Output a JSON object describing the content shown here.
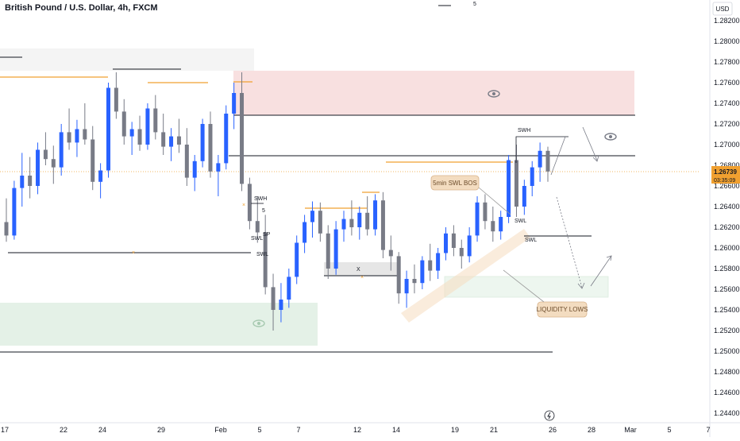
{
  "chart_data": {
    "type": "candlestick",
    "title": "British Pound / U.S. Dollar, 4h, FXCM",
    "top_marker": "5",
    "currency": "USD",
    "yticks": [
      "1.28200",
      "1.28000",
      "1.27800",
      "1.27600",
      "1.27400",
      "1.27200",
      "1.27000",
      "1.26800",
      "1.26600",
      "1.26400",
      "1.26200",
      "1.26000",
      "1.25800",
      "1.25600",
      "1.25400",
      "1.25200",
      "1.25000",
      "1.24800",
      "1.24600",
      "1.24400"
    ],
    "ylim": [
      1.2432,
      1.2832
    ],
    "xticks": [
      "17",
      "22",
      "24",
      "29",
      "Feb",
      "5",
      "7",
      "12",
      "14",
      "19",
      "21",
      "26",
      "28",
      "Mar",
      "5",
      "7"
    ],
    "last_price": "1.26739",
    "countdown": "03:35:09",
    "colors": {
      "up": "#2962ff",
      "down": "#787b86",
      "supply_zone": "#f2c6c6",
      "demand_zone": "#cde6d3",
      "price_line": "#f0a030"
    },
    "annotations": {
      "swh_top": "SWH",
      "swh_mid": "SWH",
      "swl_mid": "SWL",
      "swl_right": "SWL",
      "swl_right_small": "SWL",
      "x_mark": "X",
      "bos_callout": "5min SWL BOS",
      "liquidity_callout": "LIQUIDITY LOWS",
      "mid_five": "5",
      "mid_sp": "SP"
    },
    "levels": [
      1.2778,
      1.2747,
      1.2697,
      1.2612,
      1.2501
    ],
    "candles": [
      {
        "o": 1.2625,
        "h": 1.2648,
        "l": 1.2606,
        "c": 1.2612
      },
      {
        "o": 1.2612,
        "h": 1.2665,
        "l": 1.2608,
        "c": 1.2658
      },
      {
        "o": 1.2658,
        "h": 1.2692,
        "l": 1.264,
        "c": 1.267
      },
      {
        "o": 1.267,
        "h": 1.2688,
        "l": 1.2648,
        "c": 1.266
      },
      {
        "o": 1.266,
        "h": 1.2702,
        "l": 1.2652,
        "c": 1.2695
      },
      {
        "o": 1.2695,
        "h": 1.2712,
        "l": 1.268,
        "c": 1.2686
      },
      {
        "o": 1.2686,
        "h": 1.2699,
        "l": 1.2662,
        "c": 1.2678
      },
      {
        "o": 1.2678,
        "h": 1.272,
        "l": 1.267,
        "c": 1.2712
      },
      {
        "o": 1.2712,
        "h": 1.2735,
        "l": 1.2695,
        "c": 1.2702
      },
      {
        "o": 1.2702,
        "h": 1.2724,
        "l": 1.2688,
        "c": 1.2715
      },
      {
        "o": 1.2715,
        "h": 1.274,
        "l": 1.27,
        "c": 1.2705
      },
      {
        "o": 1.2705,
        "h": 1.2718,
        "l": 1.2656,
        "c": 1.2664
      },
      {
        "o": 1.2664,
        "h": 1.2682,
        "l": 1.2648,
        "c": 1.2675
      },
      {
        "o": 1.2675,
        "h": 1.276,
        "l": 1.2668,
        "c": 1.2755
      },
      {
        "o": 1.2755,
        "h": 1.277,
        "l": 1.2725,
        "c": 1.2732
      },
      {
        "o": 1.2732,
        "h": 1.2744,
        "l": 1.27,
        "c": 1.2708
      },
      {
        "o": 1.2708,
        "h": 1.2722,
        "l": 1.269,
        "c": 1.2715
      },
      {
        "o": 1.2715,
        "h": 1.2728,
        "l": 1.2694,
        "c": 1.27
      },
      {
        "o": 1.27,
        "h": 1.274,
        "l": 1.2695,
        "c": 1.2735
      },
      {
        "o": 1.2735,
        "h": 1.2748,
        "l": 1.2705,
        "c": 1.2712
      },
      {
        "o": 1.2712,
        "h": 1.273,
        "l": 1.269,
        "c": 1.2698
      },
      {
        "o": 1.2698,
        "h": 1.2716,
        "l": 1.2684,
        "c": 1.2708
      },
      {
        "o": 1.2708,
        "h": 1.2725,
        "l": 1.2692,
        "c": 1.27
      },
      {
        "o": 1.27,
        "h": 1.2716,
        "l": 1.266,
        "c": 1.2668
      },
      {
        "o": 1.2668,
        "h": 1.269,
        "l": 1.2655,
        "c": 1.2684
      },
      {
        "o": 1.2684,
        "h": 1.2725,
        "l": 1.2678,
        "c": 1.272
      },
      {
        "o": 1.272,
        "h": 1.2732,
        "l": 1.2668,
        "c": 1.2674
      },
      {
        "o": 1.2674,
        "h": 1.269,
        "l": 1.265,
        "c": 1.2682
      },
      {
        "o": 1.2682,
        "h": 1.2738,
        "l": 1.2676,
        "c": 1.273
      },
      {
        "o": 1.273,
        "h": 1.276,
        "l": 1.2715,
        "c": 1.275
      },
      {
        "o": 1.275,
        "h": 1.277,
        "l": 1.2655,
        "c": 1.2662
      },
      {
        "o": 1.2662,
        "h": 1.2668,
        "l": 1.2618,
        "c": 1.2626
      },
      {
        "o": 1.2626,
        "h": 1.265,
        "l": 1.2605,
        "c": 1.2615
      },
      {
        "o": 1.2615,
        "h": 1.2632,
        "l": 1.2555,
        "c": 1.2562
      },
      {
        "o": 1.2562,
        "h": 1.2575,
        "l": 1.252,
        "c": 1.254
      },
      {
        "o": 1.254,
        "h": 1.2566,
        "l": 1.2528,
        "c": 1.255
      },
      {
        "o": 1.255,
        "h": 1.258,
        "l": 1.2542,
        "c": 1.2572
      },
      {
        "o": 1.2572,
        "h": 1.2612,
        "l": 1.2565,
        "c": 1.2605
      },
      {
        "o": 1.2605,
        "h": 1.2632,
        "l": 1.2595,
        "c": 1.2625
      },
      {
        "o": 1.2625,
        "h": 1.2645,
        "l": 1.261,
        "c": 1.2636
      },
      {
        "o": 1.2636,
        "h": 1.2644,
        "l": 1.2606,
        "c": 1.2614
      },
      {
        "o": 1.2614,
        "h": 1.2622,
        "l": 1.257,
        "c": 1.258
      },
      {
        "o": 1.258,
        "h": 1.2626,
        "l": 1.2574,
        "c": 1.2618
      },
      {
        "o": 1.2618,
        "h": 1.2636,
        "l": 1.2606,
        "c": 1.2628
      },
      {
        "o": 1.2628,
        "h": 1.2646,
        "l": 1.2612,
        "c": 1.262
      },
      {
        "o": 1.262,
        "h": 1.264,
        "l": 1.2608,
        "c": 1.2634
      },
      {
        "o": 1.2634,
        "h": 1.265,
        "l": 1.2612,
        "c": 1.2618
      },
      {
        "o": 1.2618,
        "h": 1.2652,
        "l": 1.2612,
        "c": 1.2646
      },
      {
        "o": 1.2646,
        "h": 1.2654,
        "l": 1.259,
        "c": 1.2598
      },
      {
        "o": 1.2598,
        "h": 1.2612,
        "l": 1.2578,
        "c": 1.2592
      },
      {
        "o": 1.2592,
        "h": 1.2596,
        "l": 1.2546,
        "c": 1.2556
      },
      {
        "o": 1.2556,
        "h": 1.2578,
        "l": 1.2542,
        "c": 1.257
      },
      {
        "o": 1.257,
        "h": 1.2584,
        "l": 1.2556,
        "c": 1.2566
      },
      {
        "o": 1.2566,
        "h": 1.2592,
        "l": 1.256,
        "c": 1.2588
      },
      {
        "o": 1.2588,
        "h": 1.2604,
        "l": 1.2568,
        "c": 1.2578
      },
      {
        "o": 1.2578,
        "h": 1.26,
        "l": 1.257,
        "c": 1.2595
      },
      {
        "o": 1.2595,
        "h": 1.262,
        "l": 1.2588,
        "c": 1.2614
      },
      {
        "o": 1.2614,
        "h": 1.2622,
        "l": 1.2592,
        "c": 1.26
      },
      {
        "o": 1.26,
        "h": 1.2608,
        "l": 1.258,
        "c": 1.2592
      },
      {
        "o": 1.2592,
        "h": 1.262,
        "l": 1.2586,
        "c": 1.2612
      },
      {
        "o": 1.2612,
        "h": 1.265,
        "l": 1.2606,
        "c": 1.2644
      },
      {
        "o": 1.2644,
        "h": 1.2652,
        "l": 1.2618,
        "c": 1.2626
      },
      {
        "o": 1.2626,
        "h": 1.264,
        "l": 1.2606,
        "c": 1.2616
      },
      {
        "o": 1.2616,
        "h": 1.2636,
        "l": 1.2608,
        "c": 1.263
      },
      {
        "o": 1.263,
        "h": 1.269,
        "l": 1.2624,
        "c": 1.2685
      },
      {
        "o": 1.2685,
        "h": 1.27,
        "l": 1.263,
        "c": 1.264
      },
      {
        "o": 1.264,
        "h": 1.2666,
        "l": 1.2632,
        "c": 1.266
      },
      {
        "o": 1.266,
        "h": 1.2684,
        "l": 1.265,
        "c": 1.2678
      },
      {
        "o": 1.2678,
        "h": 1.2702,
        "l": 1.2664,
        "c": 1.2694
      },
      {
        "o": 1.2694,
        "h": 1.2698,
        "l": 1.2664,
        "c": 1.2674
      }
    ]
  }
}
